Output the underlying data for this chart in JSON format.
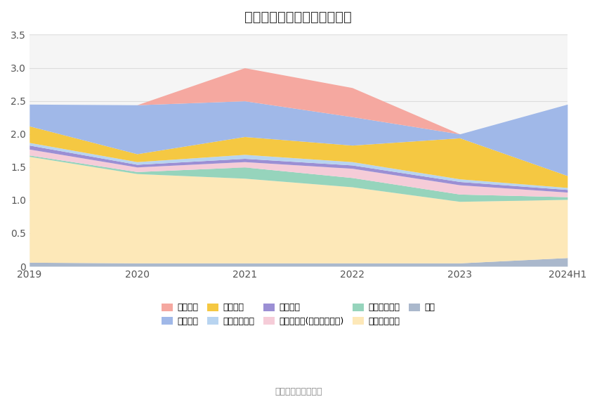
{
  "title": "历年主要负债堆积图（亿元）",
  "source": "数据来源：恒生聚源",
  "years": [
    "2019",
    "2020",
    "2021",
    "2022",
    "2023",
    "2024H1"
  ],
  "series": [
    {
      "name": "其它",
      "color": "#aab8cc",
      "values": [
        0.06,
        0.05,
        0.05,
        0.05,
        0.05,
        0.13
      ]
    },
    {
      "name": "长期递延收益",
      "color": "#fde8b8",
      "values": [
        1.6,
        1.35,
        1.28,
        1.15,
        0.93,
        0.88
      ]
    },
    {
      "name": "其他流动负债",
      "color": "#96d4bc",
      "values": [
        0.02,
        0.03,
        0.17,
        0.14,
        0.11,
        0.04
      ]
    },
    {
      "name": "其他应付款(合利息和股利)",
      "color": "#f5ccd8",
      "values": [
        0.09,
        0.07,
        0.08,
        0.14,
        0.14,
        0.07
      ]
    },
    {
      "name": "应交税费",
      "color": "#9b8fd4",
      "values": [
        0.06,
        0.04,
        0.05,
        0.05,
        0.05,
        0.04
      ]
    },
    {
      "name": "应付职工薪酬",
      "color": "#b8d4f0",
      "values": [
        0.04,
        0.04,
        0.06,
        0.05,
        0.04,
        0.03
      ]
    },
    {
      "name": "合同负债",
      "color": "#f5c842",
      "values": [
        0.25,
        0.12,
        0.27,
        0.25,
        0.62,
        0.18
      ]
    },
    {
      "name": "应付账款",
      "color": "#a0b8e8",
      "values": [
        0.33,
        0.74,
        0.54,
        0.43,
        0.06,
        1.08
      ]
    },
    {
      "name": "短期借款",
      "color": "#f5a8a0",
      "values": [
        0.0,
        0.0,
        0.5,
        0.44,
        0.0,
        0.0
      ]
    }
  ],
  "ylim": [
    0,
    3.5
  ],
  "yticks": [
    0,
    0.5,
    1.0,
    1.5,
    2.0,
    2.5,
    3.0,
    3.5
  ],
  "bg_color": "#ffffff",
  "plot_bg_color": "#f5f5f5",
  "grid_color": "#dddddd",
  "title_fontsize": 14,
  "label_fontsize": 10,
  "legend_row1": [
    "短期借款",
    "应付账款",
    "合同负债",
    "应付职工薪酬",
    "应交税费"
  ],
  "legend_row2": [
    "其他应付款(合利息和股利)",
    "其他流动负债",
    "长期递延收益",
    "其它"
  ]
}
